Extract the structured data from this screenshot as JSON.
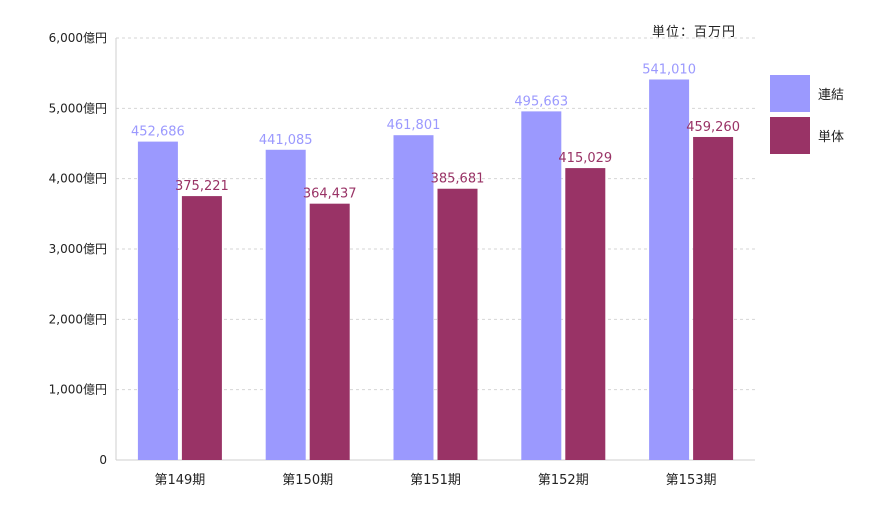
{
  "unit_note": "単位：百万円",
  "colors": {
    "consolidated": "#9b99fe",
    "standalone": "#993366",
    "grid": "#d6d6d6",
    "axis": "#cfcfcf",
    "text": "#222222"
  },
  "chart_data": {
    "type": "bar",
    "categories": [
      "第149期",
      "第150期",
      "第151期",
      "第152期",
      "第153期"
    ],
    "series": [
      {
        "name": "連結",
        "values": [
          452686,
          441085,
          461801,
          495663,
          541010
        ],
        "labels": [
          "452,686",
          "441,085",
          "461,801",
          "495,663",
          "541,010"
        ]
      },
      {
        "name": "単体",
        "values": [
          375221,
          364437,
          385681,
          415029,
          459260
        ],
        "labels": [
          "375,221",
          "364,437",
          "385,681",
          "415,029",
          "459,260"
        ]
      }
    ],
    "yticks": [
      0,
      100000,
      200000,
      300000,
      400000,
      500000,
      600000
    ],
    "ytick_labels": [
      "0",
      "1,000億円",
      "2,000億円",
      "3,000億円",
      "4,000億円",
      "5,000億円",
      "6,000億円"
    ],
    "ylim": [
      0,
      600000
    ],
    "grid": true,
    "legend": "right"
  }
}
